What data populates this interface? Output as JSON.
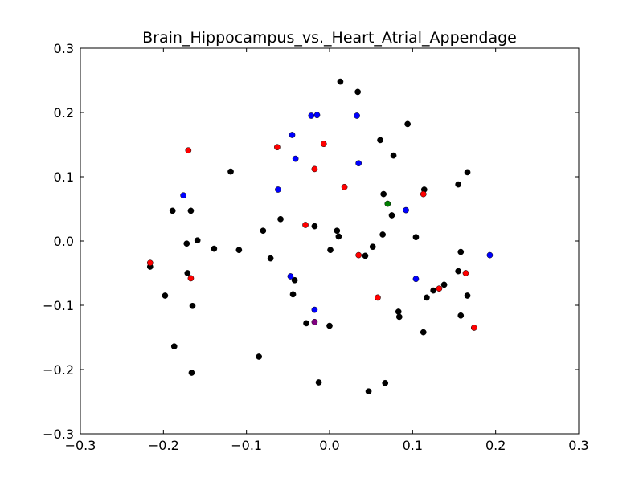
{
  "chart_data": {
    "type": "scatter",
    "title": "Brain_Hippocampus_vs._Heart_Atrial_Appendage",
    "xlabel": "",
    "ylabel": "",
    "xlim": [
      -0.3,
      0.3
    ],
    "ylim": [
      -0.3,
      0.3
    ],
    "xticks": [
      "−0.3",
      "−0.2",
      "−0.1",
      "0.0",
      "0.1",
      "0.2",
      "0.3"
    ],
    "yticks": [
      "−0.3",
      "−0.2",
      "−0.1",
      "0.0",
      "0.1",
      "0.2",
      "0.3"
    ],
    "xtick_values": [
      -0.3,
      -0.2,
      -0.1,
      0.0,
      0.1,
      0.2,
      0.3
    ],
    "ytick_values": [
      -0.3,
      -0.2,
      -0.1,
      0.0,
      0.1,
      0.2,
      0.3
    ],
    "grid": false,
    "legend": "none",
    "series": [
      {
        "color": "#000000",
        "points": [
          [
            0.013,
            0.248
          ],
          [
            0.034,
            0.232
          ],
          [
            0.094,
            0.182
          ],
          [
            0.061,
            0.157
          ],
          [
            0.077,
            0.133
          ],
          [
            -0.119,
            0.108
          ],
          [
            0.166,
            0.107
          ],
          [
            0.155,
            0.088
          ],
          [
            0.114,
            0.08
          ],
          [
            0.065,
            0.073
          ],
          [
            -0.189,
            0.047
          ],
          [
            -0.167,
            0.047
          ],
          [
            0.075,
            0.04
          ],
          [
            -0.059,
            0.034
          ],
          [
            -0.018,
            0.023
          ],
          [
            -0.08,
            0.016
          ],
          [
            0.009,
            0.016
          ],
          [
            0.064,
            0.01
          ],
          [
            0.011,
            0.007
          ],
          [
            0.104,
            0.006
          ],
          [
            -0.159,
            0.001
          ],
          [
            -0.172,
            -0.004
          ],
          [
            0.052,
            -0.009
          ],
          [
            -0.139,
            -0.012
          ],
          [
            -0.109,
            -0.014
          ],
          [
            0.001,
            -0.014
          ],
          [
            0.043,
            -0.023
          ],
          [
            -0.071,
            -0.027
          ],
          [
            -0.216,
            -0.04
          ],
          [
            0.155,
            -0.047
          ],
          [
            -0.171,
            -0.05
          ],
          [
            -0.042,
            -0.061
          ],
          [
            0.138,
            -0.068
          ],
          [
            0.125,
            -0.077
          ],
          [
            -0.044,
            -0.083
          ],
          [
            -0.198,
            -0.085
          ],
          [
            0.166,
            -0.085
          ],
          [
            0.117,
            -0.088
          ],
          [
            -0.165,
            -0.101
          ],
          [
            0.083,
            -0.11
          ],
          [
            0.158,
            -0.116
          ],
          [
            0.084,
            -0.118
          ],
          [
            -0.028,
            -0.128
          ],
          [
            0.0,
            -0.132
          ],
          [
            0.113,
            -0.142
          ],
          [
            -0.187,
            -0.164
          ],
          [
            -0.085,
            -0.18
          ],
          [
            -0.166,
            -0.205
          ],
          [
            -0.013,
            -0.22
          ],
          [
            0.067,
            -0.221
          ],
          [
            0.047,
            -0.234
          ],
          [
            0.158,
            -0.017
          ]
        ]
      },
      {
        "color": "#0000ff",
        "points": [
          [
            -0.022,
            0.195
          ],
          [
            -0.015,
            0.196
          ],
          [
            0.033,
            0.195
          ],
          [
            -0.045,
            0.165
          ],
          [
            -0.041,
            0.128
          ],
          [
            0.035,
            0.121
          ],
          [
            -0.062,
            0.08
          ],
          [
            -0.176,
            0.071
          ],
          [
            0.092,
            0.048
          ],
          [
            0.193,
            -0.022
          ],
          [
            -0.047,
            -0.055
          ],
          [
            0.104,
            -0.059
          ],
          [
            -0.018,
            -0.107
          ]
        ]
      },
      {
        "color": "#ff0000",
        "points": [
          [
            -0.17,
            0.141
          ],
          [
            -0.063,
            0.146
          ],
          [
            -0.007,
            0.151
          ],
          [
            -0.018,
            0.112
          ],
          [
            0.018,
            0.084
          ],
          [
            0.113,
            0.073
          ],
          [
            -0.029,
            0.025
          ],
          [
            -0.216,
            -0.034
          ],
          [
            0.035,
            -0.022
          ],
          [
            0.164,
            -0.05
          ],
          [
            -0.167,
            -0.058
          ],
          [
            0.132,
            -0.074
          ],
          [
            0.058,
            -0.088
          ],
          [
            0.174,
            -0.135
          ]
        ]
      },
      {
        "color": "#007f00",
        "points": [
          [
            0.07,
            0.058
          ]
        ]
      },
      {
        "color": "#800080",
        "points": [
          [
            -0.018,
            -0.126
          ]
        ]
      }
    ]
  }
}
